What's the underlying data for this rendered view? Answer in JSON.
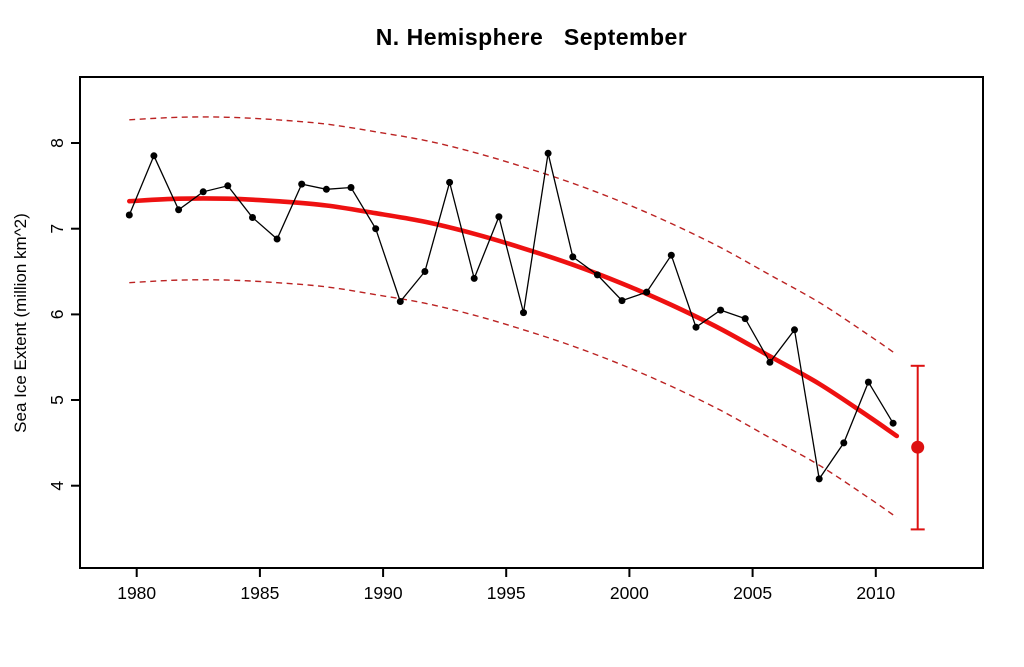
{
  "chart_data": {
    "type": "line",
    "title": "N. Hemisphere   September",
    "ylabel": "Sea Ice Extent (million km^2)",
    "xlabel": "",
    "x_ticks": [
      1980,
      1985,
      1990,
      1995,
      2000,
      2005,
      2010
    ],
    "y_ticks": [
      4,
      5,
      6,
      7,
      8
    ],
    "xlim": [
      1977.7,
      2014.35
    ],
    "ylim": [
      3.04,
      8.77
    ],
    "grid": false,
    "legend": "none",
    "series": [
      {
        "name": "observed-september-sea-ice-extent",
        "type": "line+markers",
        "color": "#000000",
        "season_offset": 0.7,
        "years": [
          1979,
          1980,
          1981,
          1982,
          1983,
          1984,
          1985,
          1986,
          1987,
          1988,
          1989,
          1990,
          1991,
          1992,
          1993,
          1994,
          1995,
          1996,
          1997,
          1998,
          1999,
          2000,
          2001,
          2002,
          2003,
          2004,
          2005,
          2006,
          2007,
          2008,
          2009,
          2010
        ],
        "values": [
          7.16,
          7.85,
          7.22,
          7.43,
          7.5,
          7.13,
          6.88,
          7.52,
          7.46,
          7.48,
          7.0,
          6.15,
          6.5,
          7.54,
          6.42,
          7.14,
          6.02,
          7.88,
          6.67,
          6.46,
          6.16,
          6.26,
          6.69,
          5.85,
          6.05,
          5.95,
          5.44,
          5.82,
          4.08,
          4.5,
          5.21,
          4.73
        ]
      }
    ],
    "fit_curve": {
      "name": "trend-fit",
      "color": "#ee1111",
      "points": [
        [
          1979.7,
          7.32
        ],
        [
          1981.7,
          7.35
        ],
        [
          1983.7,
          7.35
        ],
        [
          1985.7,
          7.32
        ],
        [
          1987.7,
          7.27
        ],
        [
          1989.7,
          7.18
        ],
        [
          1991.7,
          7.08
        ],
        [
          1993.7,
          6.94
        ],
        [
          1995.7,
          6.77
        ],
        [
          1997.7,
          6.58
        ],
        [
          1999.7,
          6.36
        ],
        [
          2001.7,
          6.11
        ],
        [
          2003.7,
          5.83
        ],
        [
          2005.7,
          5.51
        ],
        [
          2007.7,
          5.19
        ],
        [
          2009.7,
          4.81
        ],
        [
          2010.85,
          4.58
        ]
      ]
    },
    "prediction_interval": {
      "name": "95%-prediction-interval",
      "style": "dashed",
      "color": "#bb2222",
      "halfwidth": 0.95
    },
    "prediction": {
      "name": "next-year-prediction",
      "year": 2011.7,
      "value": 4.45,
      "ci_low": 3.49,
      "ci_high": 5.4,
      "color": "#dd1111"
    }
  }
}
